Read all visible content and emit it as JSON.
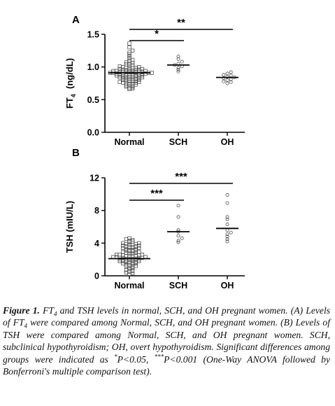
{
  "chart_data": [
    {
      "panel": "A",
      "type": "scatter",
      "ylabel_main": "FT",
      "ylabel_sub": "4",
      "ylabel_unit": "(ng/dL)",
      "ylim": [
        0,
        1.5
      ],
      "yticks": [
        "0.0",
        "0.5",
        "1.0",
        "1.5"
      ],
      "categories": [
        "Normal",
        "SCH",
        "OH"
      ],
      "means": [
        0.91,
        1.03,
        0.84
      ],
      "series": [
        {
          "values": [
            0.66,
            0.67,
            0.68,
            0.69,
            0.7,
            0.71,
            0.71,
            0.72,
            0.73,
            0.74,
            0.74,
            0.75,
            0.76,
            0.76,
            0.77,
            0.77,
            0.78,
            0.78,
            0.79,
            0.79,
            0.8,
            0.8,
            0.81,
            0.81,
            0.82,
            0.82,
            0.83,
            0.83,
            0.84,
            0.84,
            0.85,
            0.85,
            0.85,
            0.86,
            0.86,
            0.86,
            0.87,
            0.87,
            0.87,
            0.88,
            0.88,
            0.88,
            0.89,
            0.89,
            0.89,
            0.9,
            0.9,
            0.9,
            0.9,
            0.91,
            0.91,
            0.91,
            0.91,
            0.92,
            0.92,
            0.92,
            0.92,
            0.93,
            0.93,
            0.93,
            0.93,
            0.94,
            0.94,
            0.94,
            0.95,
            0.95,
            0.95,
            0.96,
            0.96,
            0.96,
            0.97,
            0.97,
            0.98,
            0.98,
            0.99,
            0.99,
            1.0,
            1.0,
            1.01,
            1.02,
            1.03,
            1.04,
            1.05,
            1.06,
            1.07,
            1.09,
            1.11,
            1.13,
            1.16,
            1.19,
            1.22,
            1.25,
            1.3,
            1.36
          ]
        },
        {
          "values": [
            0.93,
            0.96,
            0.99,
            1.01,
            1.03,
            1.05,
            1.08,
            1.12,
            1.16
          ]
        },
        {
          "values": [
            0.75,
            0.77,
            0.78,
            0.8,
            0.81,
            0.83,
            0.84,
            0.85,
            0.87,
            0.88,
            0.9,
            0.92
          ]
        }
      ],
      "brackets": [
        {
          "from": "Normal",
          "to": "SCH",
          "label": "*"
        },
        {
          "from": "Normal",
          "to": "OH",
          "label": "**"
        }
      ]
    },
    {
      "panel": "B",
      "type": "scatter",
      "ylabel_main": "TSH (mIU/L)",
      "ylim": [
        0,
        12
      ],
      "yticks": [
        "0",
        "4",
        "8",
        "12"
      ],
      "categories": [
        "Normal",
        "SCH",
        "OH"
      ],
      "means": [
        2.1,
        5.4,
        5.8
      ],
      "series": [
        {
          "values": [
            0.2,
            0.3,
            0.4,
            0.5,
            0.6,
            0.7,
            0.8,
            0.9,
            1.0,
            1.1,
            1.2,
            1.2,
            1.3,
            1.4,
            1.4,
            1.5,
            1.5,
            1.6,
            1.6,
            1.7,
            1.7,
            1.8,
            1.8,
            1.8,
            1.9,
            1.9,
            1.9,
            2.0,
            2.0,
            2.0,
            2.0,
            2.1,
            2.1,
            2.1,
            2.1,
            2.2,
            2.2,
            2.2,
            2.2,
            2.3,
            2.3,
            2.3,
            2.4,
            2.4,
            2.4,
            2.5,
            2.5,
            2.5,
            2.6,
            2.6,
            2.6,
            2.7,
            2.7,
            2.8,
            2.8,
            2.9,
            2.9,
            3.0,
            3.0,
            3.1,
            3.1,
            3.2,
            3.2,
            3.3,
            3.3,
            3.4,
            3.4,
            3.5,
            3.5,
            3.6,
            3.6,
            3.7,
            3.7,
            3.8,
            3.8,
            3.9,
            3.9,
            4.0,
            4.0,
            4.1,
            4.2,
            4.3,
            4.4,
            4.5,
            4.6
          ]
        },
        {
          "values": [
            4.1,
            4.3,
            4.6,
            4.9,
            5.4,
            5.6,
            7.2,
            8.6
          ]
        },
        {
          "values": [
            4.2,
            4.5,
            4.8,
            5.1,
            5.3,
            5.6,
            6.3,
            6.9,
            7.2,
            8.9,
            9.9
          ]
        }
      ],
      "brackets": [
        {
          "from": "Normal",
          "to": "SCH",
          "label": "***"
        },
        {
          "from": "Normal",
          "to": "OH",
          "label": "***"
        }
      ]
    }
  ],
  "panel_labels": [
    "A",
    "B"
  ],
  "caption": {
    "figure_label": "Figure 1.",
    "ft": "FT",
    "sub4": "4",
    "p1": " and TSH levels in normal, SCH, and OH pregnant women. (A) Levels of ",
    "p2": " were compared among Normal, SCH, and OH pregnant women. (B) Levels of TSH were compared among Normal, SCH, and OH pregnant women. SCH, subclinical hypothyroidism; OH, overt hypothyroidism. Significant differences among groups were indicated as ",
    "star1": "*",
    "p3": "P<0.05, ",
    "star3": "***",
    "p4": "P<0.001 (One-Way ANOVA followed by Bonferroni's multiple comparison test)."
  },
  "colors": {
    "axis": "#000000",
    "marker_stroke": "#3a3a3a"
  }
}
